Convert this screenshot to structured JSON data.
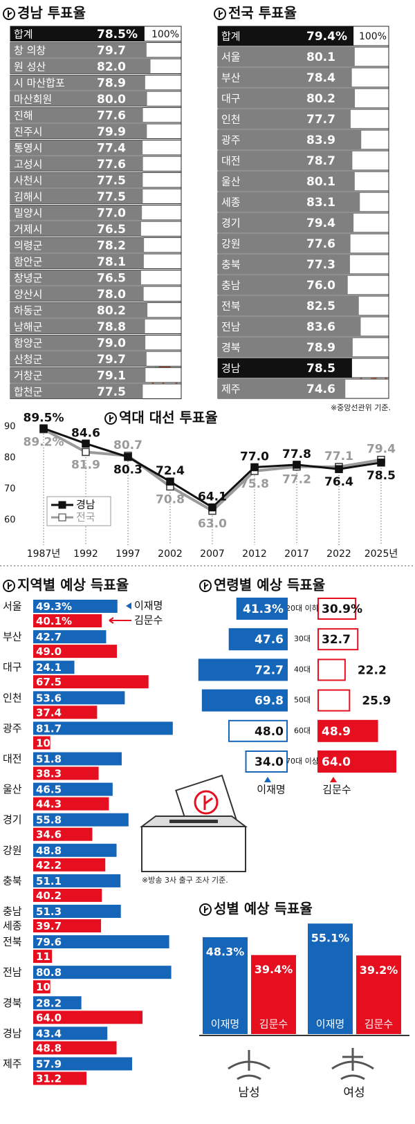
{
  "chart_data": [
    {
      "type": "bar",
      "title": "경남 투표율",
      "categories": [
        "합계",
        "창 의창",
        "원 성산",
        "시 마산합포",
        "마산회원",
        "진해",
        "진주시",
        "통영시",
        "고성시",
        "사천시",
        "김해시",
        "밀양시",
        "거제시",
        "의령군",
        "함안군",
        "창녕군",
        "양산시",
        "하동군",
        "남해군",
        "함양군",
        "산청군",
        "거창군",
        "합천군"
      ],
      "values": [
        78.5,
        79.7,
        82.0,
        78.9,
        80.0,
        77.6,
        79.9,
        77.4,
        77.6,
        77.5,
        77.5,
        77.0,
        76.5,
        78.2,
        78.1,
        76.5,
        78.0,
        80.2,
        78.8,
        79.0,
        79.7,
        79.1,
        77.5
      ],
      "value_labels": [
        "78.5%",
        "79.7",
        "82.0",
        "78.9",
        "80.0",
        "77.6",
        "79.9",
        "77.4",
        "77.6",
        "77.5",
        "77.5",
        "77.0",
        "76.5",
        "78.2",
        "78.1",
        "76.5",
        "78.0",
        "80.2",
        "78.8",
        "79.0",
        "79.7",
        "79.1",
        "77.5"
      ],
      "colors": [
        "#111111",
        "#808080",
        "#808080",
        "#808080",
        "#808080",
        "#808080",
        "#808080",
        "#808080",
        "#808080",
        "#808080",
        "#808080",
        "#808080",
        "#808080",
        "#808080",
        "#808080",
        "#808080",
        "#808080",
        "#808080",
        "#808080",
        "#808080",
        "#808080",
        "#808080",
        "#808080"
      ],
      "xlim": [
        0,
        100
      ],
      "xticks": [
        {
          "value": 100,
          "label": "100%"
        }
      ]
    },
    {
      "type": "bar",
      "title": "전국 투표율",
      "categories": [
        "합계",
        "서울",
        "부산",
        "대구",
        "인천",
        "광주",
        "대전",
        "울산",
        "세종",
        "경기",
        "강원",
        "충북",
        "충남",
        "전북",
        "전남",
        "경북",
        "경남",
        "제주"
      ],
      "values": [
        79.4,
        80.1,
        78.4,
        80.2,
        77.7,
        83.9,
        78.7,
        80.1,
        83.1,
        79.4,
        77.6,
        77.3,
        76.0,
        82.5,
        83.6,
        78.9,
        78.5,
        74.6
      ],
      "value_labels": [
        "79.4%",
        "80.1",
        "78.4",
        "80.2",
        "77.7",
        "83.9",
        "78.7",
        "80.1",
        "83.1",
        "79.4",
        "77.6",
        "77.3",
        "76.0",
        "82.5",
        "83.6",
        "78.9",
        "78.5",
        "74.6"
      ],
      "colors": [
        "#111111",
        "#808080",
        "#808080",
        "#808080",
        "#808080",
        "#808080",
        "#808080",
        "#808080",
        "#808080",
        "#808080",
        "#808080",
        "#808080",
        "#808080",
        "#808080",
        "#808080",
        "#808080",
        "#111111",
        "#808080"
      ],
      "xlim": [
        0,
        100
      ],
      "xticks": [
        {
          "value": 100,
          "label": "100%"
        }
      ],
      "note": "※중앙선관위 기준."
    },
    {
      "type": "line",
      "title": "역대 대선 투표율",
      "categories": [
        "1987년",
        "1992",
        "1997",
        "2002",
        "2007",
        "2012",
        "2017",
        "2022",
        "2025년"
      ],
      "series": [
        {
          "name": "경남",
          "color": "#111111",
          "values": [
            89.5,
            84.6,
            80.3,
            72.4,
            64.1,
            77.0,
            77.8,
            76.4,
            78.5
          ],
          "value_labels": [
            "89.5%",
            "84.6",
            "80.3",
            "72.4",
            "64.1",
            "77.0",
            "77.8",
            "76.4",
            "78.5"
          ]
        },
        {
          "name": "전국",
          "color": "#9a9a9a",
          "values": [
            89.2,
            81.9,
            80.7,
            70.8,
            63.0,
            75.8,
            77.2,
            77.1,
            79.4
          ],
          "value_labels": [
            "89.2%",
            "81.9",
            "80.7",
            "70.8",
            "63.0",
            "75.8",
            "77.2",
            "77.1",
            "79.4"
          ]
        }
      ],
      "ylim": [
        56,
        92
      ],
      "yticks": [
        60,
        70,
        80,
        90
      ]
    },
    {
      "type": "grouped-bar",
      "title": "지역별 예상 득표율",
      "categories": [
        "서울",
        "부산",
        "대구",
        "인천",
        "광주",
        "대전",
        "울산",
        "경기",
        "강원",
        "충북",
        "충남",
        "전북",
        "전남",
        "경북",
        "경남",
        "제주"
      ],
      "extra_label": "세종",
      "series": [
        {
          "name": "이재명",
          "color": "#1565b8",
          "values": [
            49.3,
            42.7,
            24.1,
            53.6,
            81.7,
            51.8,
            46.5,
            55.8,
            48.8,
            51.1,
            51.3,
            79.6,
            80.8,
            28.2,
            43.4,
            57.9
          ],
          "value_labels": [
            "49.3%",
            "42.7",
            "24.1",
            "53.6",
            "81.7",
            "51.8",
            "46.5",
            "55.8",
            "48.8",
            "51.1",
            "51.3",
            "79.6",
            "80.8",
            "28.2",
            "43.4",
            "57.9"
          ]
        },
        {
          "name": "김문수",
          "color": "#e50f1f",
          "values": [
            40.1,
            49.0,
            67.5,
            37.4,
            10,
            38.3,
            44.3,
            34.6,
            42.2,
            40.2,
            39.7,
            11,
            10,
            64.0,
            48.8,
            31.2
          ],
          "value_labels": [
            "40.1%",
            "49.0",
            "67.5",
            "37.4",
            "10",
            "38.3",
            "44.3",
            "34.6",
            "42.2",
            "40.2",
            "39.7",
            "11",
            "10",
            "64.0",
            "48.8",
            "31.2"
          ]
        }
      ],
      "xlim": [
        0,
        100
      ],
      "note": "※방송 3사 출구 조사 기준."
    },
    {
      "type": "diverging-bar",
      "title": "연령별 예상 득표율",
      "categories": [
        "20대 이하",
        "30대",
        "40대",
        "50대",
        "60대",
        "70대 이상"
      ],
      "series": [
        {
          "name": "이재명",
          "color": "#1565b8",
          "values": [
            41.3,
            47.6,
            72.7,
            69.8,
            48.0,
            34.0
          ],
          "value_labels": [
            "41.3%",
            "47.6",
            "72.7",
            "69.8",
            "48.0",
            "34.0"
          ]
        },
        {
          "name": "김문수",
          "color": "#e50f1f",
          "values": [
            30.9,
            32.7,
            22.2,
            25.9,
            48.9,
            64.0
          ],
          "value_labels": [
            "30.9%",
            "32.7",
            "22.2",
            "25.9",
            "48.9",
            "64.0"
          ]
        }
      ]
    },
    {
      "type": "column",
      "title": "성별 예상 득표율",
      "categories": [
        "남성",
        "여성"
      ],
      "series": [
        {
          "name": "이재명",
          "color": "#1565b8",
          "values": [
            48.3,
            55.1
          ],
          "value_labels": [
            "48.3%",
            "55.1%"
          ]
        },
        {
          "name": "김문수",
          "color": "#e50f1f",
          "values": [
            39.4,
            39.2
          ],
          "value_labels": [
            "39.4%",
            "39.2%"
          ]
        }
      ]
    }
  ]
}
